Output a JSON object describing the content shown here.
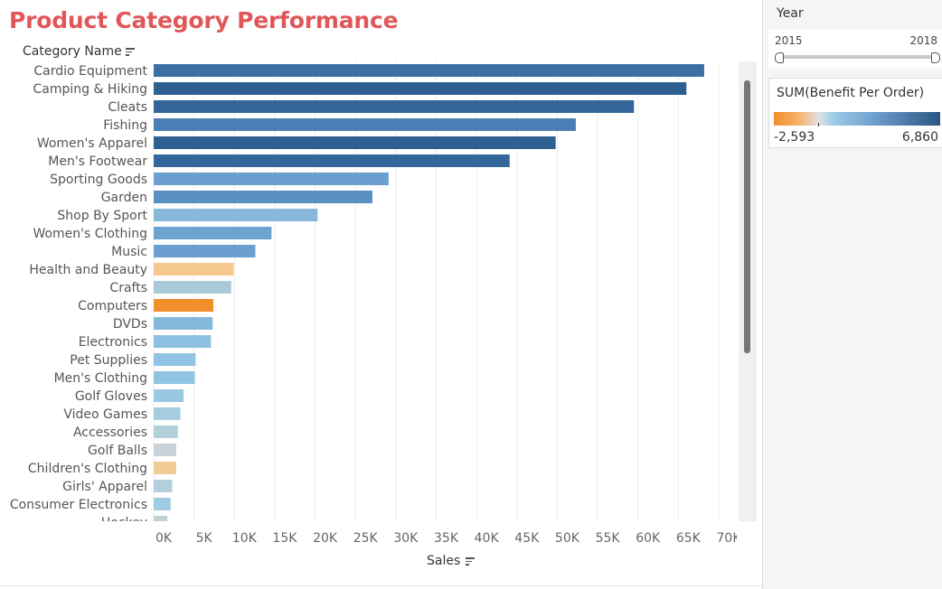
{
  "header": {
    "title": "Product Category Performance",
    "category_header": "Category Name",
    "axis_title": "Sales"
  },
  "filters": {
    "year_label": "Year",
    "year_min": "2015",
    "year_max": "2018"
  },
  "legend": {
    "title": "SUM(Benefit Per Order)",
    "min_label": "-2,593",
    "max_label": "6,860",
    "min_color": "#f28e2b",
    "max_color": "#2a5783"
  },
  "chart_data": {
    "type": "bar",
    "orientation": "horizontal",
    "xlabel": "Sales",
    "ylabel": "Category Name",
    "xlim": [
      0,
      70000
    ],
    "x_ticks": [
      "0K",
      "5K",
      "10K",
      "15K",
      "20K",
      "25K",
      "30K",
      "35K",
      "40K",
      "45K",
      "50K",
      "55K",
      "60K",
      "65K",
      "70K"
    ],
    "grid": true,
    "color_legend": "SUM(Benefit Per Order)",
    "categories": [
      "Cardio Equipment",
      "Camping & Hiking",
      "Cleats",
      "Fishing",
      "Women's Apparel",
      "Men's Footwear",
      "Sporting Goods",
      "Garden",
      "Shop By Sport",
      "Women's Clothing",
      "Music",
      "Health and Beauty",
      "Crafts",
      "Computers",
      "DVDs",
      "Electronics",
      "Pet Supplies",
      "Men's Clothing",
      "Golf Gloves",
      "Video Games",
      "Accessories",
      "Golf Balls",
      "Children's Clothing",
      "Girls' Apparel",
      "Consumer Electronics",
      "Hockey"
    ],
    "values": [
      68200,
      66000,
      59500,
      52300,
      49800,
      44100,
      29100,
      27100,
      20300,
      14600,
      12600,
      9900,
      9600,
      7400,
      7300,
      7100,
      5200,
      5100,
      3700,
      3300,
      3000,
      2800,
      2800,
      2300,
      2100,
      1700
    ],
    "colors": [
      "#3c6fa3",
      "#2e5f91",
      "#33659a",
      "#4a7fb5",
      "#2e5f91",
      "#34679c",
      "#6a9fcf",
      "#5a8fc4",
      "#87b8dc",
      "#6ea2d0",
      "#6a9fcf",
      "#f5c98e",
      "#a9cad8",
      "#f28e2b",
      "#83b8dc",
      "#8dbfe0",
      "#91c4e2",
      "#91c4e2",
      "#98c8e2",
      "#a4cde2",
      "#b3d0dc",
      "#c7d3d6",
      "#f2ca96",
      "#b3d0dc",
      "#9fcbe5",
      "#c2cfd5"
    ]
  }
}
